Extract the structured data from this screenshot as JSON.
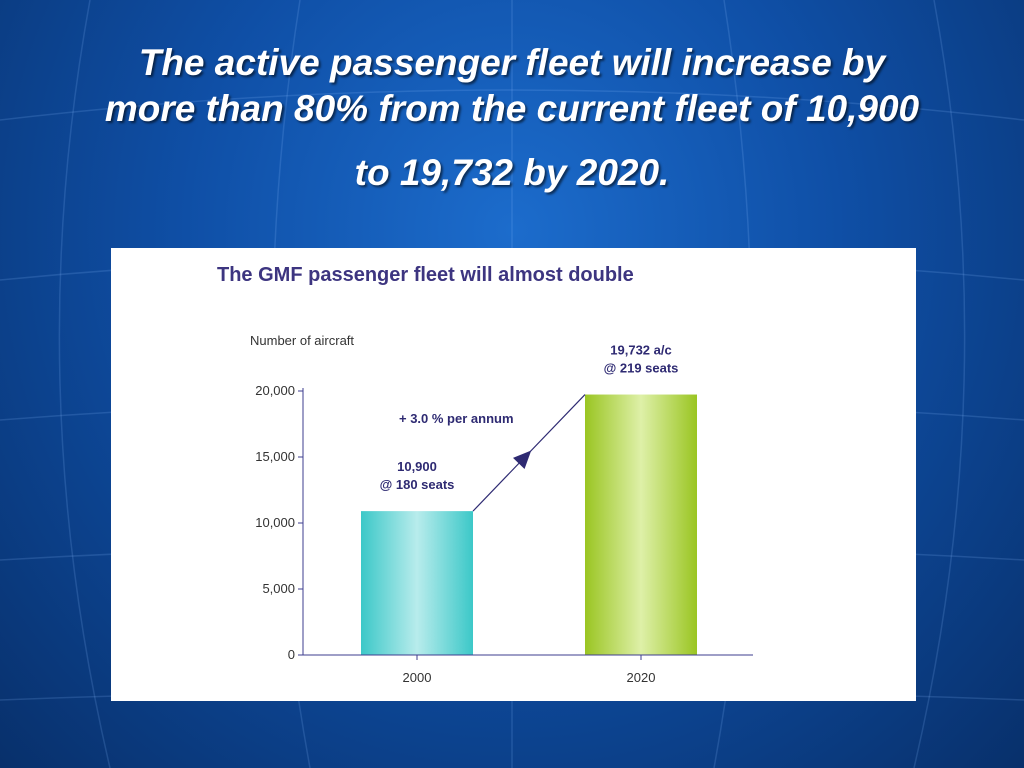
{
  "slide": {
    "title_lines": [
      "The active passenger fleet will increase by",
      "more than 80% from the current fleet of 10,900",
      "to 19,732 by 2020."
    ]
  },
  "chart_data": {
    "type": "bar",
    "title": "The GMF passenger fleet will almost double",
    "ylabel": "Number of aircraft",
    "xlabel": "",
    "categories": [
      "2000",
      "2020"
    ],
    "values": [
      10900,
      19732
    ],
    "ylim": [
      0,
      20000
    ],
    "yticks": [
      0,
      5000,
      10000,
      15000,
      20000
    ],
    "ytick_labels": [
      "0",
      "5,000",
      "10,000",
      "15,000",
      "20,000"
    ],
    "bar_labels": [
      [
        "10,900",
        "@ 180 seats"
      ],
      [
        "19,732 a/c",
        "@ 219 seats"
      ]
    ],
    "annotation": "+ 3.0 % per annum",
    "grid": false,
    "colors": {
      "bar_2000": "#3cc8c8",
      "bar_2020": "#9ac522",
      "axis": "#3d3d8f",
      "title": "#3d3580",
      "label": "#2e2a72"
    }
  }
}
